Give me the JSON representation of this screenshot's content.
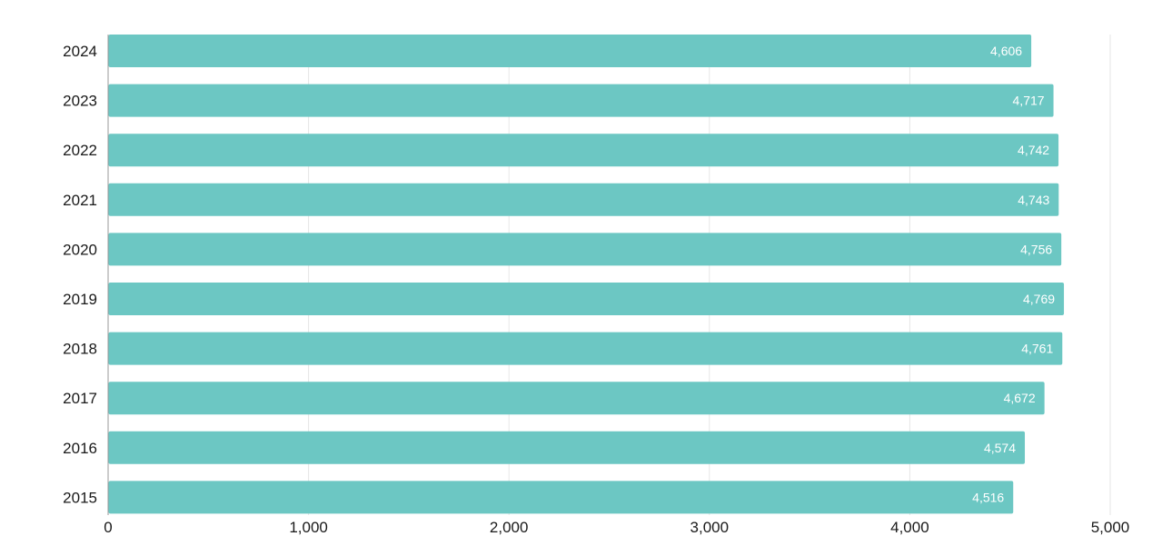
{
  "colors": {
    "bar": "#6cc7c3",
    "grid": "#e6e6e6",
    "axis": "#999999",
    "text": "#1a1a1a",
    "bar_label": "#ffffff"
  },
  "chart_data": {
    "type": "bar",
    "orientation": "horizontal",
    "title": "",
    "xlabel": "",
    "ylabel": "",
    "categories": [
      "2024",
      "2023",
      "2022",
      "2021",
      "2020",
      "2019",
      "2018",
      "2017",
      "2016",
      "2015"
    ],
    "values": [
      4606,
      4717,
      4742,
      4743,
      4756,
      4769,
      4761,
      4672,
      4574,
      4516
    ],
    "data_labels": [
      "4,606",
      "4,717",
      "4,742",
      "4,743",
      "4,756",
      "4,769",
      "4,761",
      "4,672",
      "4,574",
      "4,516"
    ],
    "xlim": [
      0,
      5000
    ],
    "x_ticks": [
      0,
      1000,
      2000,
      3000,
      4000,
      5000
    ],
    "x_tick_labels": [
      "0",
      "1,000",
      "2,000",
      "3,000",
      "4,000",
      "5,000"
    ],
    "grid": "vertical",
    "legend": "none"
  }
}
